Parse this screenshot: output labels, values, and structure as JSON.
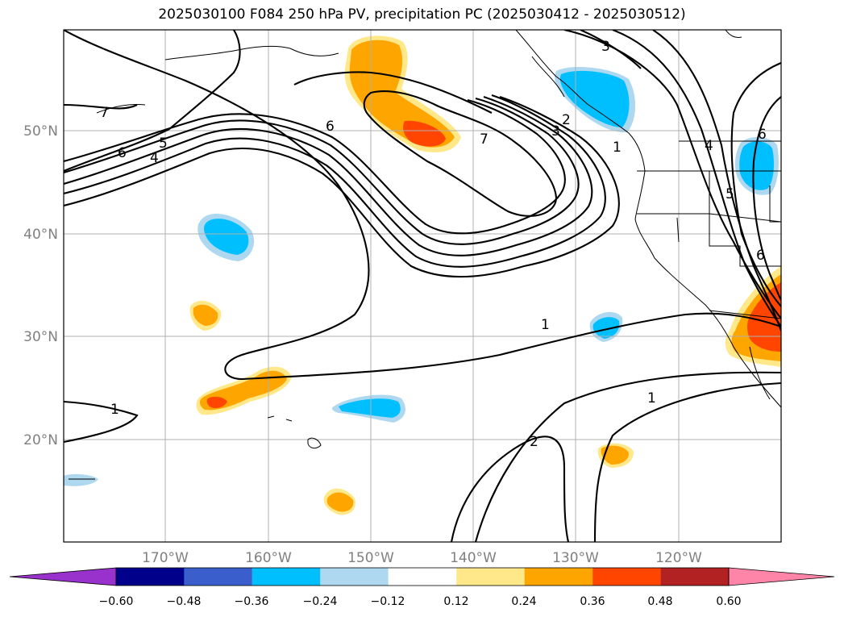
{
  "title": "2025030100 F084 250 hPa PV, precipitation PC (2025030412 - 2025030512)",
  "latitude_labels": [
    "50°N",
    "40°N",
    "30°N",
    "20°N"
  ],
  "longitude_labels": [
    "170°W",
    "160°W",
    "150°W",
    "140°W",
    "130°W",
    "120°W"
  ],
  "contour_labels": [
    "7",
    "6",
    "5",
    "4",
    "6",
    "7",
    "3",
    "2",
    "1",
    "3",
    "4",
    "5",
    "6",
    "6",
    "1",
    "1",
    "1",
    "2"
  ],
  "colorbar": {
    "ticks": [
      "−0.60",
      "−0.48",
      "−0.36",
      "−0.24",
      "−0.12",
      "0.12",
      "0.24",
      "0.36",
      "0.48",
      "0.60"
    ],
    "colors": [
      "#9932cc",
      "#00008b",
      "#3a5fcd",
      "#00bfff",
      "#add8f0",
      "#ffffff",
      "#ffe88a",
      "#ffa500",
      "#ff4500",
      "#b22222",
      "#ff85a8"
    ]
  },
  "shading_colors": {
    "neg_light": "#add8f0",
    "neg_mid": "#00bfff",
    "pos_light": "#ffe88a",
    "pos_mid": "#ffa500",
    "pos_strong": "#ff4500"
  }
}
